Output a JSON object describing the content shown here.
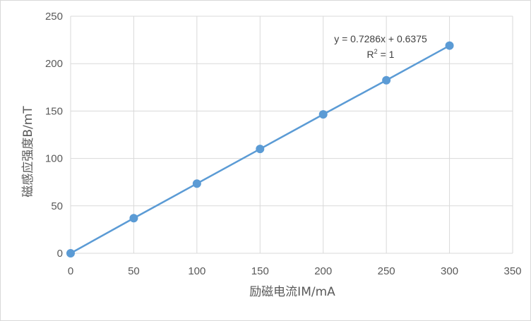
{
  "chart_data": {
    "type": "scatter",
    "xlabel": "励磁电流IM/mA",
    "ylabel": "磁感应强度B/mT",
    "xlim": [
      0,
      350
    ],
    "ylim": [
      0,
      250
    ],
    "x_ticks": [
      0,
      50,
      100,
      150,
      200,
      250,
      300,
      350
    ],
    "y_ticks": [
      0,
      50,
      100,
      150,
      200,
      250
    ],
    "grid": true,
    "series": [
      {
        "x": [
          0,
          50,
          100,
          150,
          200,
          250,
          300
        ],
        "y": [
          0,
          37,
          73.5,
          110,
          146.5,
          182.5,
          219
        ],
        "color": "#5b9bd5",
        "markers": true,
        "line": true
      }
    ],
    "trendline": {
      "equation": "y = 0.7286x + 0.6375",
      "r2_label": "R",
      "r2_sup": "2",
      "r2_value": " = 1"
    }
  }
}
